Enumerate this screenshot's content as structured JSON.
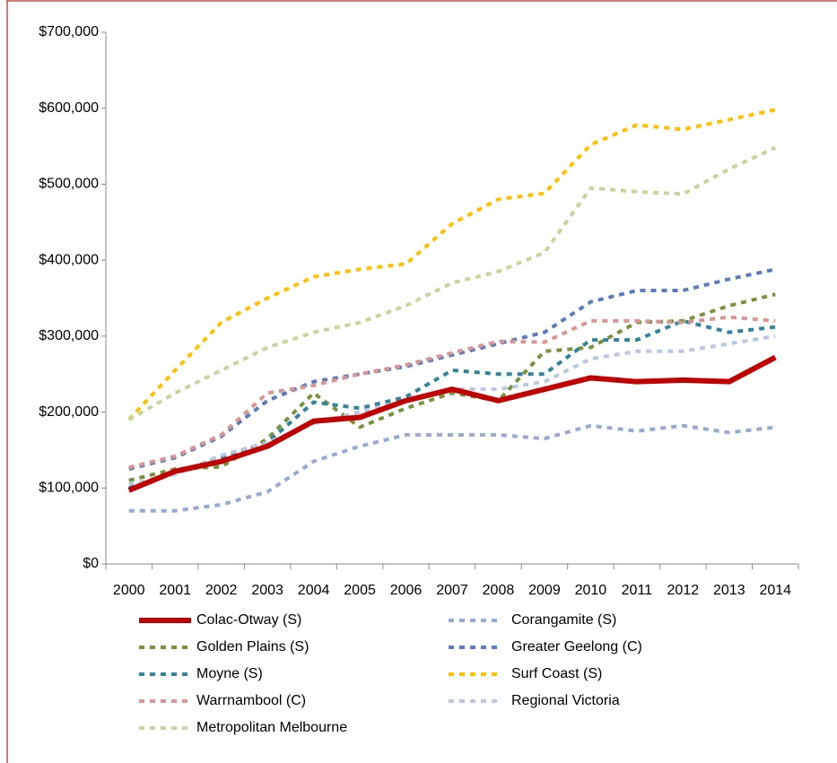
{
  "chart_data": {
    "type": "line",
    "categories": [
      "2000",
      "2001",
      "2002",
      "2003",
      "2004",
      "2005",
      "2006",
      "2007",
      "2008",
      "2009",
      "2010",
      "2011",
      "2012",
      "2013",
      "2014"
    ],
    "ylim": [
      0,
      700000
    ],
    "yticks": [
      {
        "value": 0,
        "label": "$0"
      },
      {
        "value": 100000,
        "label": "$100,000"
      },
      {
        "value": 200000,
        "label": "$200,000"
      },
      {
        "value": 300000,
        "label": "$300,000"
      },
      {
        "value": 400000,
        "label": "$400,000"
      },
      {
        "value": 500000,
        "label": "$500,000"
      },
      {
        "value": 600000,
        "label": "$600,000"
      },
      {
        "value": 700000,
        "label": "$700,000"
      }
    ],
    "series": [
      {
        "name": "Colac-Otway (S)",
        "color": "#c00000",
        "values": [
          97000,
          122000,
          135000,
          155000,
          188000,
          193000,
          215000,
          230000,
          215000,
          230000,
          245000,
          240000,
          242000,
          240000,
          272000
        ]
      },
      {
        "name": "Corangamite (S)",
        "color": "#95a9d1",
        "values": [
          70000,
          70000,
          78000,
          95000,
          135000,
          155000,
          170000,
          170000,
          170000,
          165000,
          182000,
          175000,
          182000,
          173000,
          180000
        ]
      },
      {
        "name": "Golden Plains (S)",
        "color": "#77933c",
        "values": [
          110000,
          125000,
          128000,
          165000,
          225000,
          180000,
          205000,
          225000,
          215000,
          280000,
          285000,
          318000,
          320000,
          340000,
          355000
        ]
      },
      {
        "name": "Greater Geelong (C)",
        "color": "#5b7bbd",
        "values": [
          125000,
          140000,
          168000,
          215000,
          240000,
          250000,
          260000,
          275000,
          290000,
          305000,
          345000,
          360000,
          360000,
          375000,
          388000
        ]
      },
      {
        "name": "Moyne (S)",
        "color": "#31849b",
        "values": [
          100000,
          120000,
          140000,
          160000,
          213000,
          205000,
          220000,
          255000,
          250000,
          250000,
          295000,
          295000,
          320000,
          305000,
          312000
        ]
      },
      {
        "name": "Surf Coast (S)",
        "color": "#ffc000",
        "values": [
          190000,
          255000,
          318000,
          350000,
          378000,
          388000,
          395000,
          448000,
          480000,
          488000,
          552000,
          578000,
          572000,
          585000,
          598000
        ]
      },
      {
        "name": "Warrnambool (C)",
        "color": "#d99594",
        "values": [
          127000,
          142000,
          170000,
          225000,
          235000,
          250000,
          262000,
          278000,
          293000,
          292000,
          320000,
          320000,
          318000,
          325000,
          320000
        ]
      },
      {
        "name": "Regional Victoria",
        "color": "#b9c8e2",
        "values": [
          105000,
          118000,
          143000,
          160000,
          185000,
          200000,
          215000,
          230000,
          230000,
          240000,
          270000,
          280000,
          280000,
          290000,
          300000
        ]
      },
      {
        "name": "Metropolitan Melbourne",
        "color": "#c3d69b",
        "values": [
          190000,
          225000,
          255000,
          285000,
          305000,
          318000,
          340000,
          370000,
          385000,
          410000,
          495000,
          490000,
          487000,
          520000,
          548000
        ]
      }
    ]
  }
}
